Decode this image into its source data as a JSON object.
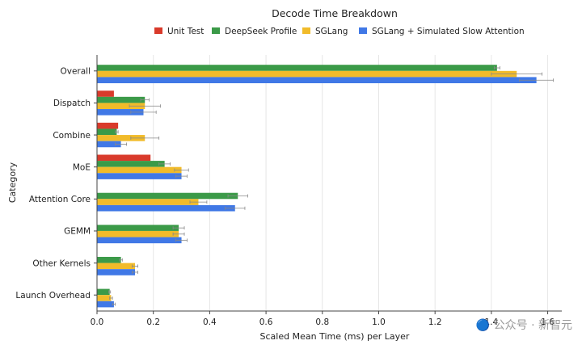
{
  "chart_data": {
    "type": "bar",
    "orientation": "horizontal",
    "title": "Decode Time Breakdown",
    "xlabel": "Scaled Mean Time (ms) per Layer",
    "ylabel": "Category",
    "xlim": [
      0,
      1.65
    ],
    "xticks": [
      "0.0",
      "0.2",
      "0.4",
      "0.6",
      "0.8",
      "1.0",
      "1.2",
      "1.4",
      "1.6"
    ],
    "grid": "vertical",
    "legend_position": "top",
    "categories": [
      "Overall",
      "Dispatch",
      "Combine",
      "MoE",
      "Attention Core",
      "GEMM",
      "Other Kernels",
      "Launch Overhead"
    ],
    "series": [
      {
        "name": "Unit Test",
        "color": "#d93a2b",
        "values": [
          null,
          0.06,
          0.075,
          0.19,
          null,
          null,
          null,
          null
        ],
        "errors": [
          null,
          null,
          null,
          null,
          null,
          null,
          null,
          null
        ]
      },
      {
        "name": "DeepSeek Profile",
        "color": "#3b9a48",
        "values": [
          1.42,
          0.17,
          0.07,
          0.24,
          0.5,
          0.29,
          0.085,
          0.045
        ],
        "errors": [
          0.01,
          0.015,
          0.005,
          0.02,
          0.035,
          0.02,
          0.005,
          0.003
        ]
      },
      {
        "name": "SGLang",
        "color": "#f1bb2a",
        "values": [
          1.49,
          0.17,
          0.17,
          0.3,
          0.36,
          0.29,
          0.135,
          0.05
        ],
        "errors": [
          0.09,
          0.055,
          0.05,
          0.025,
          0.03,
          0.02,
          0.01,
          0.005
        ]
      },
      {
        "name": "SGLang + Simulated Slow Attention",
        "color": "#4078e6",
        "values": [
          1.56,
          0.165,
          0.085,
          0.3,
          0.49,
          0.3,
          0.135,
          0.06
        ],
        "errors": [
          0.06,
          0.045,
          0.02,
          0.02,
          0.035,
          0.02,
          0.01,
          0.005
        ]
      }
    ]
  },
  "watermark": "🔵 公众号 · 新智元"
}
